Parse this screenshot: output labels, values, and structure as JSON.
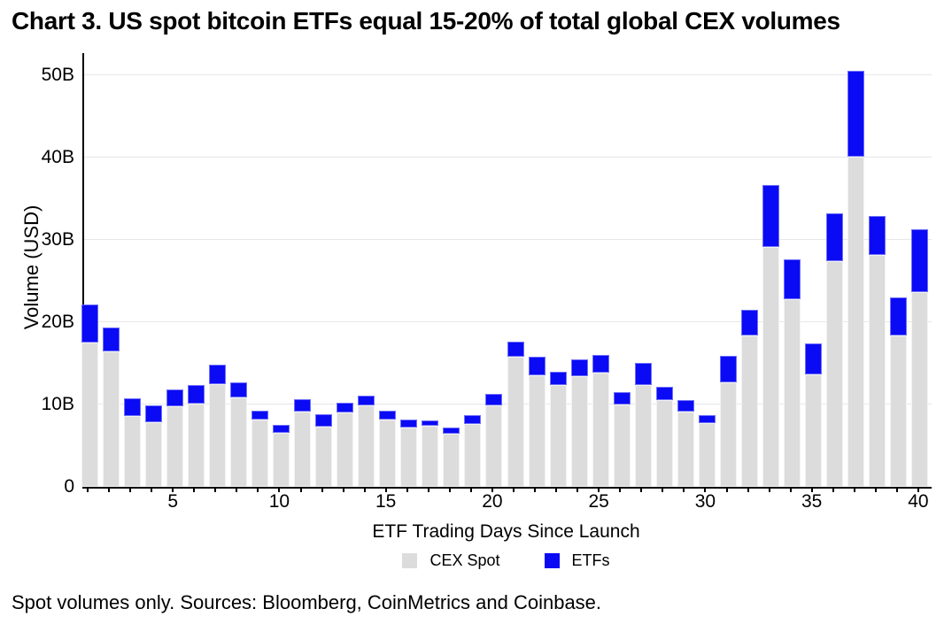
{
  "title": "Chart 3. US spot bitcoin ETFs equal 15-20% of total global CEX volumes",
  "footnote": "Spot volumes only. Sources: Bloomberg, CoinMetrics and Coinbase.",
  "colors": {
    "cex_spot": "#DCDCDC",
    "etfs": "#0A0AF5",
    "gridline": "#E7E7E7",
    "axis": "#000000",
    "background": "#FFFFFF"
  },
  "chart_data": {
    "type": "bar",
    "stacked": true,
    "title": "Chart 3. US spot bitcoin ETFs equal 15-20% of total global CEX volumes",
    "xlabel": "ETF Trading Days Since Launch",
    "ylabel": "Volume (USD)",
    "unit": "billions USD",
    "x": [
      1,
      2,
      3,
      4,
      5,
      6,
      7,
      8,
      9,
      10,
      11,
      12,
      13,
      14,
      15,
      16,
      17,
      18,
      19,
      20,
      21,
      22,
      23,
      24,
      25,
      26,
      27,
      28,
      29,
      30,
      31,
      32,
      33,
      34,
      35,
      36,
      37,
      38,
      39,
      40
    ],
    "x_ticks_labeled": [
      5,
      10,
      15,
      20,
      25,
      30,
      35,
      40
    ],
    "y_ticks": [
      "0",
      "10B",
      "20B",
      "30B",
      "40B",
      "50B"
    ],
    "ylim": [
      0,
      52.7
    ],
    "grid": "horizontal",
    "legend_position": "bottom",
    "series": [
      {
        "name": "CEX Spot",
        "color": "#DCDCDC",
        "values": [
          17.5,
          16.4,
          8.6,
          7.8,
          9.8,
          10.1,
          12.5,
          10.9,
          8.2,
          6.6,
          9.1,
          7.3,
          9.0,
          9.9,
          8.2,
          7.2,
          7.4,
          6.4,
          7.6,
          9.9,
          15.8,
          13.6,
          12.4,
          13.4,
          13.9,
          10.0,
          12.4,
          10.5,
          9.1,
          7.7,
          12.7,
          18.4,
          29.1,
          22.8,
          13.7,
          27.4,
          40.1,
          28.2,
          18.4,
          23.7
        ]
      },
      {
        "name": "ETFs",
        "color": "#0A0AF5",
        "values": [
          4.7,
          3.0,
          2.2,
          2.1,
          2.0,
          2.3,
          2.3,
          1.8,
          1.1,
          0.9,
          1.6,
          1.5,
          1.2,
          1.2,
          1.0,
          1.0,
          0.7,
          0.8,
          1.1,
          1.4,
          1.8,
          2.2,
          1.6,
          2.1,
          2.1,
          1.5,
          2.7,
          1.6,
          1.4,
          1.0,
          3.2,
          3.1,
          7.6,
          4.8,
          3.7,
          5.8,
          10.4,
          4.7,
          4.6,
          7.6
        ]
      }
    ]
  }
}
